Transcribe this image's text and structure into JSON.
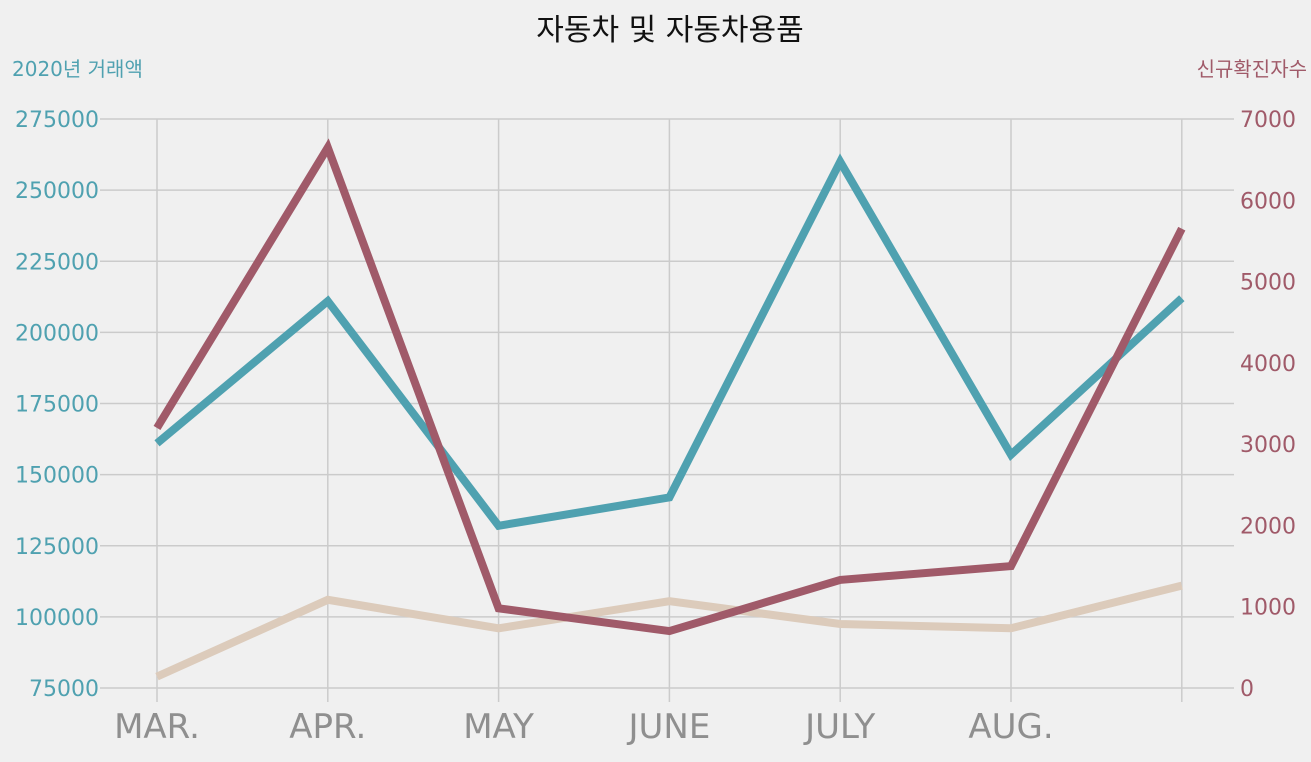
{
  "chart_data": {
    "type": "line",
    "title": "자동차 및 자동차용품",
    "left_ylabel": "2020년 거래액",
    "right_ylabel": "신규확진자수",
    "categories": [
      "MAR.",
      "APR.",
      "MAY",
      "JUNE",
      "JULY",
      "AUG.",
      ""
    ],
    "left_ylim": [
      75000,
      275000
    ],
    "left_yticks": [
      75000,
      100000,
      125000,
      150000,
      175000,
      200000,
      225000,
      250000,
      275000
    ],
    "right_ylim": [
      0,
      7000
    ],
    "right_yticks": [
      0,
      1000,
      2000,
      3000,
      4000,
      5000,
      6000,
      7000
    ],
    "grid": true,
    "series": [
      {
        "axis": "left",
        "color": "#4fa1b0",
        "values": [
          161000,
          211000,
          132000,
          142000,
          260000,
          157000,
          212000
        ]
      },
      {
        "axis": "left",
        "color": "#dccbbb",
        "values": [
          79000,
          106000,
          96000,
          105500,
          97500,
          96000,
          111000
        ]
      },
      {
        "axis": "right",
        "color": "#a05a69",
        "values": [
          3200,
          6650,
          980,
          700,
          1330,
          1500,
          5650
        ]
      }
    ],
    "colors": {
      "left_axis": "#4fa1b0",
      "right_axis": "#a05a69",
      "x_ticks": "#8f8f8f",
      "grid": "#cbcbcb"
    }
  }
}
